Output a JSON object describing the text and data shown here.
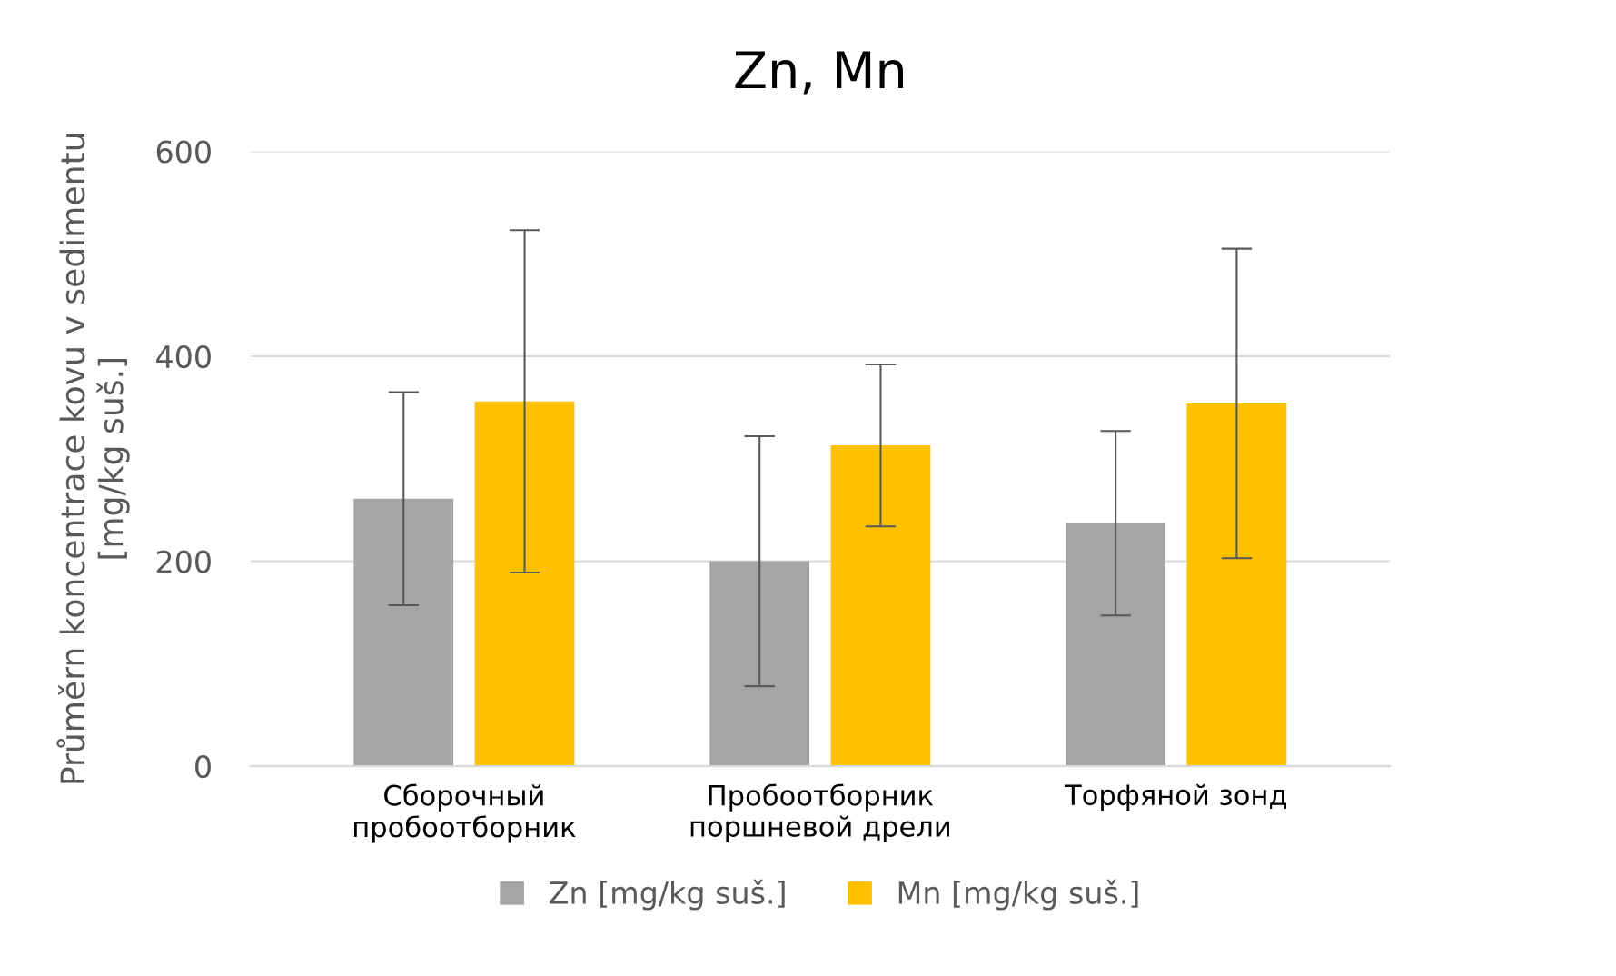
{
  "chart_data": {
    "type": "bar",
    "title": "Zn, Mn",
    "ylabel": "Průměrn koncentrace kovu v sedimentu\n[mg/kg suš.]",
    "categories": [
      "Сборочный\nпробоотборник",
      "Пробоотборник\nпоршневой дрели",
      "Торфяной зонд"
    ],
    "series": [
      {
        "name": "Zn [mg/kg suš.]",
        "color": "#a5a5a5",
        "values": [
          261,
          200,
          237
        ],
        "errors": [
          104,
          122,
          90
        ]
      },
      {
        "name": "Mn [mg/kg suš.]",
        "color": "#ffc000",
        "values": [
          356,
          313,
          354
        ],
        "errors": [
          167,
          79,
          151
        ]
      }
    ],
    "ylim": [
      0,
      600
    ],
    "yticks": [
      0,
      200,
      400,
      600
    ],
    "grid": "y",
    "legend": "bottom"
  }
}
